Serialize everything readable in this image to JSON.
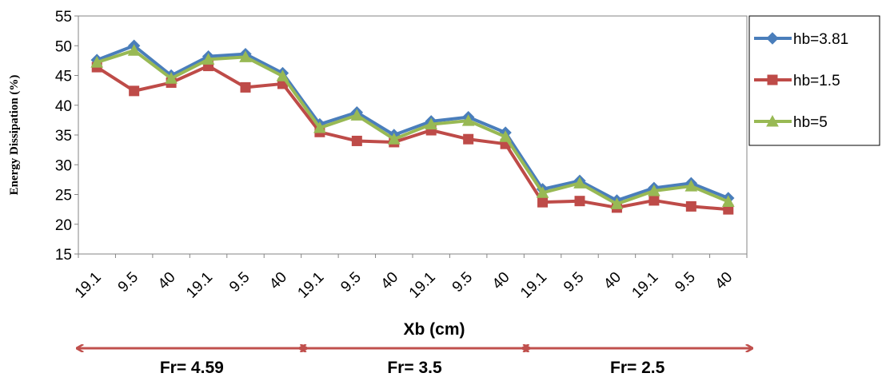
{
  "chart_data": {
    "type": "line",
    "title": "",
    "xlabel": "Xb (cm)",
    "ylabel": "Energy Dissipation (%)",
    "ylim": [
      15,
      55
    ],
    "yticks": [
      "15",
      "20",
      "25",
      "30",
      "35",
      "40",
      "45",
      "50",
      "55"
    ],
    "grid": false,
    "legend_position": "right",
    "categories": [
      "19.1",
      "9.5",
      "40",
      "19.1",
      "9.5",
      "40",
      "19.1",
      "9.5",
      "40",
      "19.1",
      "9.5",
      "40",
      "19.1",
      "9.5",
      "40",
      "19.1",
      "9.5",
      "40"
    ],
    "series": [
      {
        "name": "hb=3.81",
        "color": "#4a7ebb",
        "marker": "diamond",
        "values": [
          47.6,
          50.0,
          45.0,
          48.2,
          48.6,
          45.4,
          36.8,
          38.8,
          35.0,
          37.3,
          38.0,
          35.4,
          25.9,
          27.3,
          24.0,
          26.1,
          26.9,
          24.4
        ]
      },
      {
        "name": "hb=1.5",
        "color": "#be4b48",
        "marker": "square",
        "values": [
          46.4,
          42.4,
          43.8,
          46.6,
          43.0,
          43.6,
          35.5,
          34.0,
          33.8,
          35.8,
          34.3,
          33.5,
          23.7,
          23.9,
          22.8,
          24.0,
          23.0,
          22.5
        ]
      },
      {
        "name": "hb=5",
        "color": "#98b954",
        "marker": "triangle",
        "values": [
          47.2,
          49.2,
          44.5,
          47.7,
          48.1,
          44.9,
          36.2,
          38.3,
          34.3,
          36.8,
          37.4,
          34.7,
          25.3,
          26.9,
          23.4,
          25.6,
          26.4,
          23.8
        ]
      }
    ],
    "groups": [
      {
        "label": "Fr= 4.59"
      },
      {
        "label": "Fr= 3.5"
      },
      {
        "label": "Fr= 2.5"
      }
    ]
  }
}
